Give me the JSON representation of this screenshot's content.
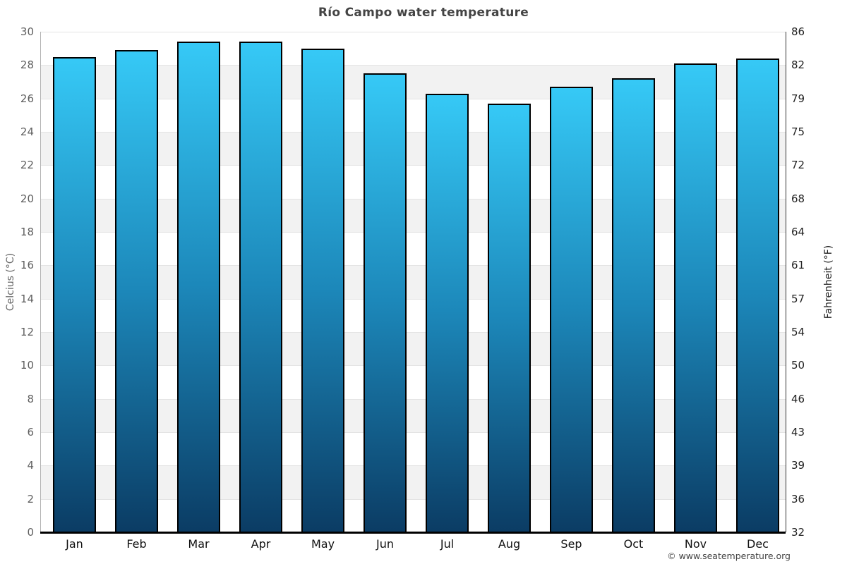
{
  "chart_data": {
    "type": "bar",
    "title": "Río Campo water temperature",
    "categories": [
      "Jan",
      "Feb",
      "Mar",
      "Apr",
      "May",
      "Jun",
      "Jul",
      "Aug",
      "Sep",
      "Oct",
      "Nov",
      "Dec"
    ],
    "values": [
      28.5,
      28.9,
      29.4,
      29.4,
      29.0,
      27.5,
      26.3,
      25.7,
      26.7,
      27.2,
      28.1,
      28.4
    ],
    "ylabel_left": "Celcius (°C)",
    "ylabel_right": "Fahrenheit (°F)",
    "ylim": [
      0,
      30
    ],
    "ytick_step": 2,
    "yticks_celsius": [
      0,
      2,
      4,
      6,
      8,
      10,
      12,
      14,
      16,
      18,
      20,
      22,
      24,
      26,
      28,
      30
    ],
    "yticks_fahrenheit": [
      32,
      36,
      39,
      43,
      46,
      50,
      54,
      57,
      61,
      64,
      68,
      72,
      75,
      79,
      82,
      86
    ],
    "grid": "horizontal gridlines with alternating 2-degree background bands",
    "legend": "none"
  },
  "footer": {
    "copyright": "© www.seatemperature.org"
  },
  "colors": {
    "bar_gradient_top": "#36c9f6",
    "bar_gradient_mid": "#1c87b9",
    "bar_gradient_bottom": "#0b3c64",
    "bar_border": "#000000",
    "band_alt": "#f2f2f2",
    "band_base": "#ffffff",
    "grid_line": "#e4e4e4",
    "axis_left_line": "#b3b3b3",
    "axis_right_line": "#333333",
    "axis_bottom_line": "#000000",
    "title_text": "#444444",
    "tick_left_text": "#5f5f5f",
    "tick_right_text": "#222222",
    "month_text": "#111111",
    "ylabel_left_text": "#666666",
    "ylabel_right_text": "#222222",
    "copyright_text": "#444444"
  }
}
